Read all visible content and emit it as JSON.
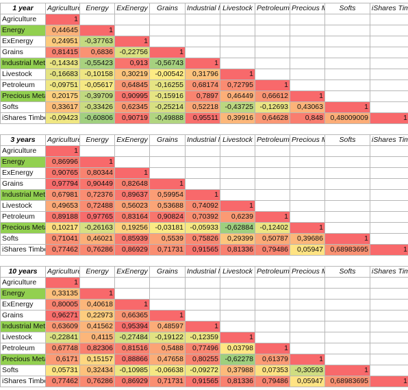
{
  "colors": {
    "label_green": "#92d050",
    "diag_red": "#f8696b",
    "scale_low": "#63be7b",
    "scale_mid": "#ffeb84",
    "scale_high": "#f8696b"
  },
  "highlighted_rows": [
    1,
    4,
    7
  ],
  "columns": [
    "Agriculture",
    "Energy",
    "ExEnergy",
    "Grains",
    "Industrial Metals",
    "Livestock",
    "Petroleum",
    "Precious Metals",
    "Softs",
    "iShares Timber"
  ],
  "rows": [
    "Agriculture",
    "Energy",
    "ExEnergy",
    "Grains",
    "Industrial Metals",
    "Livestock",
    "Petroleum",
    "Precious Metals",
    "Softs",
    "iShares Timber"
  ],
  "tables": [
    {
      "title": "1 year",
      "values": [
        [
          "1"
        ],
        [
          "0,44645",
          "1"
        ],
        [
          "0,24951",
          "-0,37763",
          "1"
        ],
        [
          "0,81415",
          "0,6836",
          "-0,22756",
          "1"
        ],
        [
          "-0,14343",
          "-0,55423",
          "0,913",
          "-0,56743",
          "1"
        ],
        [
          "-0,16683",
          "-0,10158",
          "0,30219",
          "-0,00542",
          "0,31796",
          "1"
        ],
        [
          "-0,09751",
          "-0,05617",
          "0,64845",
          "-0,16255",
          "0,68174",
          "0,72795",
          "1"
        ],
        [
          "0,20175",
          "-0,39709",
          "0,90995",
          "-0,15916",
          "0,7897",
          "0,46449",
          "0,66612",
          "1"
        ],
        [
          "0,33617",
          "-0,33426",
          "0,62345",
          "-0,25214",
          "0,52218",
          "-0,43725",
          "-0,12693",
          "0,43063",
          "1"
        ],
        [
          "-0,09423",
          "-0,60806",
          "0,90719",
          "-0,49888",
          "0,95511",
          "0,39916",
          "0,64628",
          "0,848",
          "0,48009009",
          "1"
        ]
      ]
    },
    {
      "title": "3 years",
      "values": [
        [
          "1"
        ],
        [
          "0,86996",
          "1"
        ],
        [
          "0,90765",
          "0,80344",
          "1"
        ],
        [
          "0,97794",
          "0,90449",
          "0,82648",
          "1"
        ],
        [
          "0,67981",
          "0,72376",
          "0,89637",
          "0,59954",
          "1"
        ],
        [
          "0,49653",
          "0,72488",
          "0,56023",
          "0,53688",
          "0,74092",
          "1"
        ],
        [
          "0,89188",
          "0,97765",
          "0,83164",
          "0,90824",
          "0,70392",
          "0,6239",
          "1"
        ],
        [
          "0,10217",
          "-0,26163",
          "0,19256",
          "-0,03181",
          "-0,05933",
          "-0,62884",
          "-0,12402",
          "1"
        ],
        [
          "0,71041",
          "0,46021",
          "0,85939",
          "0,5539",
          "0,75826",
          "0,29399",
          "0,50787",
          "0,39686",
          "1"
        ],
        [
          "0,77462",
          "0,76286",
          "0,86929",
          "0,71731",
          "0,91565",
          "0,81336",
          "0,79486",
          "0,05947",
          "0,68983695",
          "1"
        ]
      ]
    },
    {
      "title": "10 years",
      "values": [
        [
          "1"
        ],
        [
          "0,33135",
          "1"
        ],
        [
          "0,80005",
          "0,40618",
          "1"
        ],
        [
          "0,96271",
          "0,22973",
          "0,66365",
          "1"
        ],
        [
          "0,63609",
          "0,41562",
          "0,95394",
          "0,48597",
          "1"
        ],
        [
          "-0,22841",
          "0,4115",
          "-0,27484",
          "-0,19122",
          "-0,12359",
          "1"
        ],
        [
          "0,67748",
          "0,82306",
          "0,81516",
          "0,5488",
          "0,77496",
          "0,03798",
          "1"
        ],
        [
          "0,6171",
          "0,15157",
          "0,88866",
          "0,47658",
          "0,80255",
          "-0,62278",
          "0,61379",
          "1"
        ],
        [
          "0,05731",
          "0,32434",
          "-0,10985",
          "-0,06638",
          "-0,09272",
          "0,37988",
          "0,07353",
          "-0,30593",
          "1"
        ],
        [
          "0,77462",
          "0,76286",
          "0,86929",
          "0,71731",
          "0,91565",
          "0,81336",
          "0,79486",
          "0,05947",
          "0,68983695",
          "1"
        ]
      ]
    }
  ]
}
